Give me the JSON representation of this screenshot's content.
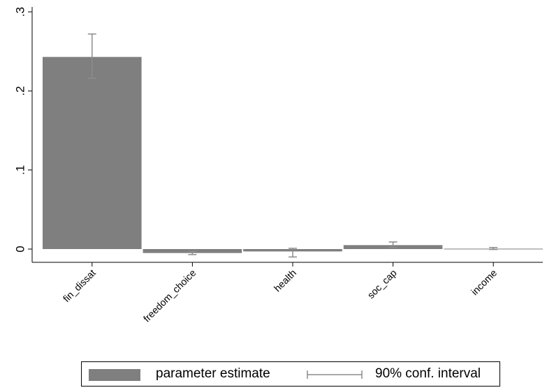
{
  "chart_data": {
    "type": "bar",
    "categories": [
      "fin_dissat",
      "freedom_choice",
      "health",
      "soc_cap",
      "income"
    ],
    "values": [
      0.243,
      -0.005,
      -0.003,
      0.005,
      0.0005
    ],
    "ci_low": [
      0.216,
      -0.007,
      -0.01,
      0.002,
      -0.0005
    ],
    "ci_high": [
      0.272,
      -0.003,
      0.001,
      0.009,
      0.002
    ],
    "ylim": [
      -0.015,
      0.3
    ],
    "yticks": [
      0,
      0.1,
      0.2,
      0.3
    ],
    "ytick_labels": [
      "0",
      ".1",
      ".2",
      ".3"
    ],
    "bar_color": "#7f7f7f",
    "ci_color": "#8c8c8c",
    "legend_position": "bottom",
    "legend": {
      "estimate_label": "parameter estimate",
      "ci_label": "90% conf. interval"
    }
  }
}
